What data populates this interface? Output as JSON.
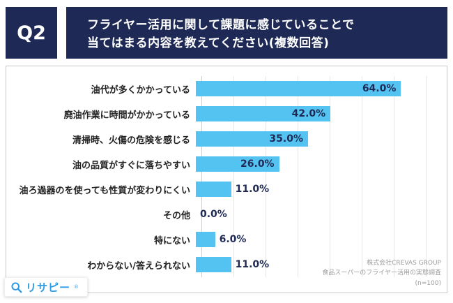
{
  "header": {
    "q_label": "Q2",
    "title_line1": "フライヤー活用に関して課題に感じていることで",
    "title_line2": "当てはまる内容を教えてください(複数回答)"
  },
  "chart_data": {
    "type": "bar",
    "orientation": "horizontal",
    "title": "フライヤー活用に関して課題に感じていること(複数回答)",
    "categories": [
      "油代が多くかかっている",
      "廃油作業に時間がかかっている",
      "清掃時、火傷の危険を感じる",
      "油の品質がすぐに落ちやすい",
      "油ろ過器のを使っても性質が変わりにくい",
      "その他",
      "特にない",
      "わからない/答えられない"
    ],
    "values": [
      64.0,
      42.0,
      35.0,
      26.0,
      11.0,
      0.0,
      6.0,
      11.0
    ],
    "value_labels": [
      "64.0%",
      "42.0%",
      "35.0%",
      "26.0%",
      "11.0%",
      "0.0%",
      "6.0%",
      "11.0%"
    ],
    "xlim": [
      0,
      70
    ],
    "grid": true,
    "bar_color": "#55C3F1",
    "label_color": "#1E2A55"
  },
  "source": {
    "line1": "株式会社CREVAS GROUP",
    "line2": "食品スーパーのフライヤー活用の実態調査",
    "line3": "(n=100)"
  },
  "logo": {
    "text": "リサピー",
    "reg": "®"
  },
  "colors": {
    "navy": "#1E2A55",
    "bar": "#55C3F1",
    "logo_blue": "#2E9BE6"
  }
}
